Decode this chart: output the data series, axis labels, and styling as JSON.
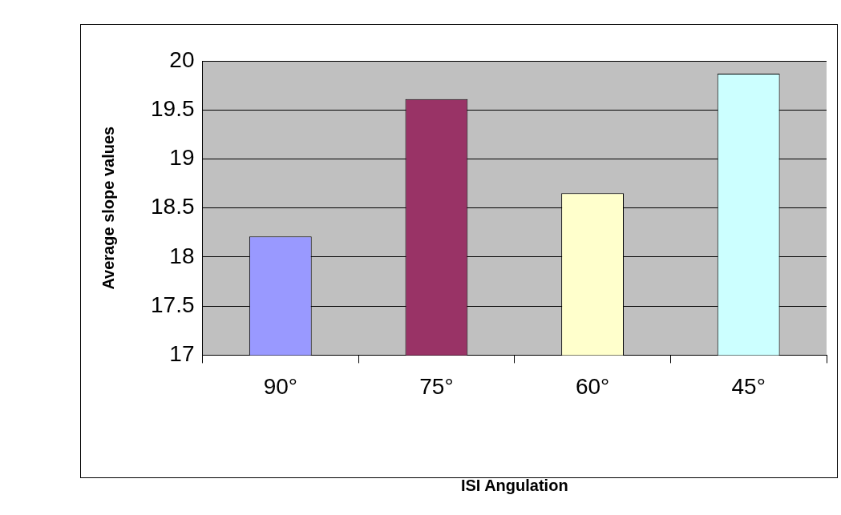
{
  "chart_data": {
    "type": "bar",
    "xlabel": "ISI Angulation",
    "ylabel": "Average slope values",
    "categories": [
      "90°",
      "75°",
      "60°",
      "45°"
    ],
    "series": [
      {
        "values": [
          18.21,
          19.61,
          18.65,
          19.87
        ],
        "colors": [
          "#9999ff",
          "#993366",
          "#ffffcc",
          "#ccffff"
        ]
      }
    ],
    "ylim": [
      17,
      20
    ],
    "yticks": [
      17,
      17.5,
      18,
      18.5,
      19,
      19.5,
      20
    ],
    "grid": "y",
    "legend": false
  }
}
